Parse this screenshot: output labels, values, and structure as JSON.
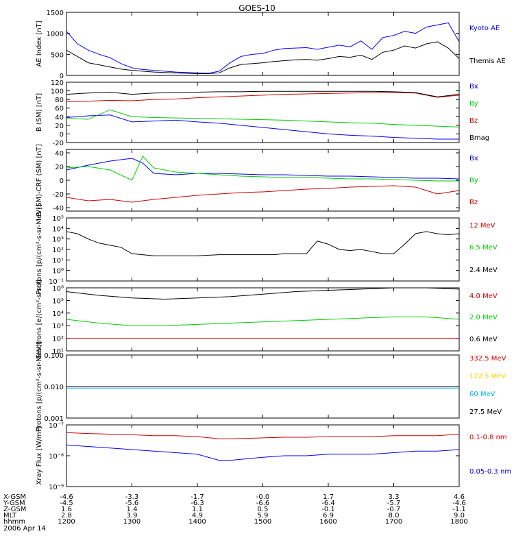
{
  "title": "GOES-10",
  "x_ticks": [
    "1200",
    "1300",
    "1400",
    "1500",
    "1600",
    "1700",
    "1800"
  ],
  "footer": {
    "rows": [
      {
        "label": "X-GSM",
        "values": [
          "-4.6",
          "-3.3",
          "-1.7",
          "-0.0",
          "1.7",
          "3.3",
          "4.6"
        ]
      },
      {
        "label": "Y-GSM",
        "values": [
          "-4.5",
          "-5.6",
          "-6.3",
          "-6.6",
          "-6.4",
          "-5.7",
          "-4.6"
        ]
      },
      {
        "label": "Z-GSM",
        "values": [
          "1.6",
          "1.4",
          "1.1",
          "0.5",
          "-0.1",
          "-0.7",
          "-1.1"
        ]
      },
      {
        "label": "MLT",
        "values": [
          "2.8",
          "3.9",
          "4.9",
          "5.9",
          "6.9",
          "8.0",
          "9.0"
        ]
      },
      {
        "label": "hhmm",
        "values": [
          "1200",
          "1300",
          "1400",
          "1500",
          "1600",
          "1700",
          "1800"
        ]
      }
    ],
    "date": "2006 Apr 14"
  },
  "chart_data": [
    {
      "type": "line",
      "ylabel": "AE Index [nT]",
      "ylim": [
        0,
        1500
      ],
      "yticks": [
        "0",
        "500",
        "1000",
        "1500"
      ],
      "yvals": [
        0,
        500,
        1000,
        1500
      ],
      "series": [
        {
          "name": "Kyoto AE",
          "color": "#0000ff",
          "x": [
            1200,
            1210,
            1220,
            1230,
            1240,
            1250,
            1300,
            1310,
            1320,
            1330,
            1340,
            1350,
            1400,
            1410,
            1420,
            1430,
            1440,
            1450,
            1500,
            1510,
            1520,
            1530,
            1540,
            1550,
            1600,
            1610,
            1620,
            1630,
            1640,
            1650,
            1700,
            1710,
            1720,
            1730,
            1740,
            1750,
            1800
          ],
          "y": [
            1050,
            750,
            600,
            500,
            420,
            280,
            180,
            140,
            120,
            100,
            80,
            70,
            60,
            50,
            100,
            300,
            450,
            500,
            520,
            600,
            640,
            650,
            660,
            620,
            670,
            720,
            680,
            820,
            620,
            900,
            950,
            1050,
            1000,
            1150,
            1200,
            1250,
            800
          ]
        },
        {
          "name": "Themis AE",
          "color": "#000000",
          "x": [
            1200,
            1210,
            1220,
            1230,
            1240,
            1250,
            1300,
            1310,
            1320,
            1330,
            1340,
            1350,
            1400,
            1410,
            1420,
            1430,
            1440,
            1450,
            1500,
            1510,
            1520,
            1530,
            1540,
            1550,
            1600,
            1610,
            1620,
            1630,
            1640,
            1650,
            1700,
            1710,
            1720,
            1730,
            1740,
            1750,
            1800
          ],
          "y": [
            600,
            450,
            300,
            250,
            200,
            150,
            120,
            100,
            80,
            70,
            60,
            50,
            40,
            40,
            60,
            180,
            260,
            280,
            300,
            330,
            350,
            370,
            380,
            360,
            400,
            450,
            430,
            480,
            380,
            550,
            600,
            700,
            650,
            750,
            800,
            650,
            400
          ]
        }
      ]
    },
    {
      "type": "line",
      "ylabel": "B (SM) [nT]",
      "ylim": [
        -20,
        120
      ],
      "yticks": [
        "-20",
        "0",
        "20",
        "40",
        "60",
        "80",
        "100",
        "120"
      ],
      "yvals": [
        -20,
        0,
        20,
        40,
        60,
        80,
        100,
        120
      ],
      "series": [
        {
          "name": "Bx",
          "color": "#0000ff",
          "x": [
            1200,
            1220,
            1240,
            1300,
            1320,
            1340,
            1400,
            1420,
            1440,
            1500,
            1520,
            1540,
            1600,
            1620,
            1640,
            1700,
            1720,
            1740,
            1800
          ],
          "y": [
            38,
            42,
            44,
            28,
            30,
            32,
            28,
            25,
            20,
            15,
            10,
            5,
            0,
            -3,
            -5,
            -8,
            -10,
            -12,
            -12
          ]
        },
        {
          "name": "By",
          "color": "#00cc00",
          "x": [
            1200,
            1220,
            1240,
            1300,
            1320,
            1340,
            1400,
            1420,
            1440,
            1500,
            1520,
            1540,
            1600,
            1620,
            1640,
            1700,
            1720,
            1740,
            1800
          ],
          "y": [
            36,
            34,
            56,
            40,
            38,
            37,
            36,
            35,
            34,
            33,
            32,
            30,
            28,
            26,
            25,
            22,
            20,
            18,
            16
          ]
        },
        {
          "name": "Bz",
          "color": "#cc0000",
          "x": [
            1200,
            1220,
            1240,
            1300,
            1320,
            1340,
            1400,
            1420,
            1440,
            1500,
            1520,
            1540,
            1600,
            1620,
            1640,
            1700,
            1720,
            1740,
            1800
          ],
          "y": [
            75,
            76,
            78,
            77,
            80,
            81,
            84,
            86,
            88,
            90,
            92,
            93,
            94,
            95,
            96,
            96,
            95,
            85,
            90
          ]
        },
        {
          "name": "Bmag",
          "color": "#000000",
          "x": [
            1200,
            1220,
            1240,
            1300,
            1320,
            1340,
            1400,
            1420,
            1440,
            1500,
            1520,
            1540,
            1600,
            1620,
            1640,
            1700,
            1720,
            1740,
            1800
          ],
          "y": [
            92,
            95,
            97,
            92,
            95,
            96,
            97,
            98,
            98,
            99,
            99,
            99,
            99,
            99,
            99,
            98,
            96,
            86,
            92
          ]
        }
      ]
    },
    {
      "type": "line",
      "ylabel": "B (SM)-CRF (SM) [nT]",
      "ylim": [
        -45,
        45
      ],
      "yticks": [
        "-40",
        "-20",
        "0",
        "20",
        "40"
      ],
      "yvals": [
        -40,
        -20,
        0,
        20,
        40
      ],
      "series": [
        {
          "name": "Bx",
          "color": "#0000ff",
          "x": [
            1200,
            1220,
            1240,
            1300,
            1310,
            1320,
            1340,
            1400,
            1420,
            1440,
            1500,
            1520,
            1540,
            1600,
            1620,
            1640,
            1700,
            1720,
            1740,
            1800
          ],
          "y": [
            15,
            22,
            28,
            32,
            25,
            10,
            8,
            10,
            10,
            9,
            8,
            8,
            7,
            6,
            6,
            5,
            4,
            3,
            3,
            2
          ]
        },
        {
          "name": "By",
          "color": "#00cc00",
          "x": [
            1200,
            1220,
            1240,
            1300,
            1310,
            1320,
            1340,
            1400,
            1420,
            1440,
            1500,
            1520,
            1540,
            1600,
            1620,
            1640,
            1700,
            1720,
            1740,
            1800
          ],
          "y": [
            18,
            20,
            15,
            0,
            35,
            18,
            12,
            10,
            8,
            6,
            5,
            4,
            4,
            3,
            2,
            2,
            1,
            0,
            -1,
            -1
          ]
        },
        {
          "name": "Bz",
          "color": "#cc0000",
          "x": [
            1200,
            1220,
            1240,
            1300,
            1310,
            1320,
            1340,
            1400,
            1420,
            1440,
            1500,
            1520,
            1540,
            1600,
            1620,
            1640,
            1700,
            1720,
            1740,
            1800
          ],
          "y": [
            -25,
            -30,
            -28,
            -32,
            -30,
            -28,
            -25,
            -22,
            -20,
            -18,
            -17,
            -15,
            -13,
            -12,
            -10,
            -9,
            -8,
            -10,
            -20,
            -15
          ]
        }
      ]
    },
    {
      "type": "line",
      "log": true,
      "ylabel": "Protons [p/(cm²-s-sr-MeV)]",
      "ylim": [
        -1,
        5
      ],
      "yticks": [
        "10⁻¹",
        "10⁰",
        "10¹",
        "10²",
        "10³",
        "10⁴",
        "10⁵"
      ],
      "yvals": [
        -1,
        0,
        1,
        2,
        3,
        4,
        5
      ],
      "series": [
        {
          "name": "12 MeV",
          "color": "#cc0000",
          "x": [],
          "y": []
        },
        {
          "name": "6.5 MeV",
          "color": "#00cc00",
          "x": [],
          "y": []
        },
        {
          "name": "2.4 MeV",
          "color": "#000000",
          "x": [
            1200,
            1210,
            1220,
            1230,
            1240,
            1250,
            1300,
            1320,
            1340,
            1400,
            1420,
            1440,
            1500,
            1510,
            1520,
            1530,
            1540,
            1550,
            1600,
            1610,
            1620,
            1630,
            1640,
            1650,
            1700,
            1710,
            1720,
            1730,
            1740,
            1750,
            1800
          ],
          "y": [
            3.7,
            3.5,
            3,
            2.6,
            2.4,
            2.2,
            1.6,
            1.4,
            1.4,
            1.4,
            1.5,
            1.5,
            1.5,
            1.5,
            1.6,
            1.6,
            1.6,
            2.8,
            2.5,
            2,
            1.9,
            2,
            1.8,
            1.6,
            1.6,
            2.5,
            3.5,
            3.7,
            3.5,
            3.4,
            3.5
          ]
        }
      ]
    },
    {
      "type": "line",
      "log": true,
      "ylabel": "Electrons [e/(cm²-s-sr)]",
      "ylim": [
        1,
        6
      ],
      "yticks": [
        "10¹",
        "10²",
        "10³",
        "10⁴",
        "10⁵",
        "10⁶"
      ],
      "yvals": [
        1,
        2,
        3,
        4,
        5,
        6
      ],
      "series": [
        {
          "name": "4.0 MeV",
          "color": "#cc0000",
          "x": [
            1200,
            1300,
            1400,
            1500,
            1600,
            1700,
            1800
          ],
          "y": [
            2,
            2,
            2,
            2,
            2,
            2,
            2
          ]
        },
        {
          "name": "2.0 MeV",
          "color": "#00cc00",
          "x": [
            1200,
            1230,
            1300,
            1330,
            1400,
            1430,
            1500,
            1530,
            1600,
            1630,
            1700,
            1730,
            1800
          ],
          "y": [
            3.5,
            3.2,
            3.0,
            3.0,
            3.1,
            3.2,
            3.3,
            3.4,
            3.5,
            3.6,
            3.7,
            3.7,
            3.5
          ]
        },
        {
          "name": "0.6 MeV",
          "color": "#000000",
          "x": [
            1200,
            1230,
            1300,
            1330,
            1400,
            1430,
            1500,
            1530,
            1600,
            1630,
            1700,
            1730,
            1800
          ],
          "y": [
            5.7,
            5.4,
            5.2,
            5.1,
            5.2,
            5.3,
            5.5,
            5.7,
            5.8,
            5.9,
            6,
            6,
            5.9
          ]
        }
      ]
    },
    {
      "type": "line",
      "log": true,
      "ylabel": "Protons [p/(cm²-s-sr-MeV)]",
      "ylim": [
        -3,
        -1
      ],
      "yticks": [
        "0.001",
        "0.010",
        "0.100"
      ],
      "yvals": [
        -3,
        -2,
        -1
      ],
      "series": [
        {
          "name": "332.5 MeV",
          "color": "#cc0000",
          "x": [],
          "y": []
        },
        {
          "name": "122.5 MeV",
          "color": "#ffcc00",
          "x": [],
          "y": []
        },
        {
          "name": "60 MeV",
          "color": "#00aadd",
          "x": [
            1200,
            1300,
            1400,
            1500,
            1600,
            1700,
            1800
          ],
          "y": [
            -2.05,
            -2.05,
            -2.05,
            -2.05,
            -2.05,
            -2.05,
            -2.05
          ]
        },
        {
          "name": "27.5 MeV",
          "color": "#000000",
          "x": [
            1200,
            1300,
            1400,
            1500,
            1600,
            1700,
            1800
          ],
          "y": [
            -2,
            -2,
            -2,
            -2,
            -2,
            -2,
            -2
          ]
        }
      ]
    },
    {
      "type": "line",
      "log": true,
      "ylabel": "Xray Flux [W/m²]",
      "ylim": [
        -9,
        -7
      ],
      "yticks": [
        "10⁻⁹",
        "10⁻⁸",
        "10⁻⁷"
      ],
      "yvals": [
        -9,
        -8,
        -7
      ],
      "series": [
        {
          "name": "0.1-0.8 nm",
          "color": "#cc0000",
          "x": [
            1200,
            1220,
            1240,
            1300,
            1320,
            1340,
            1400,
            1420,
            1430,
            1500,
            1520,
            1540,
            1600,
            1620,
            1640,
            1700,
            1720,
            1740,
            1800
          ],
          "y": [
            -7.25,
            -7.28,
            -7.3,
            -7.32,
            -7.35,
            -7.35,
            -7.38,
            -7.45,
            -7.45,
            -7.42,
            -7.4,
            -7.4,
            -7.38,
            -7.38,
            -7.38,
            -7.35,
            -7.35,
            -7.35,
            -7.3
          ]
        },
        {
          "name": "0.05-0.3 nm",
          "color": "#0000ff",
          "x": [
            1200,
            1220,
            1240,
            1300,
            1320,
            1340,
            1400,
            1420,
            1430,
            1500,
            1520,
            1540,
            1600,
            1620,
            1640,
            1700,
            1720,
            1740,
            1800
          ],
          "y": [
            -7.65,
            -7.7,
            -7.75,
            -7.8,
            -7.85,
            -7.9,
            -7.95,
            -8.15,
            -8.15,
            -8.05,
            -8.0,
            -8.0,
            -7.95,
            -7.95,
            -7.95,
            -7.9,
            -7.85,
            -7.85,
            -7.8
          ]
        }
      ]
    }
  ]
}
